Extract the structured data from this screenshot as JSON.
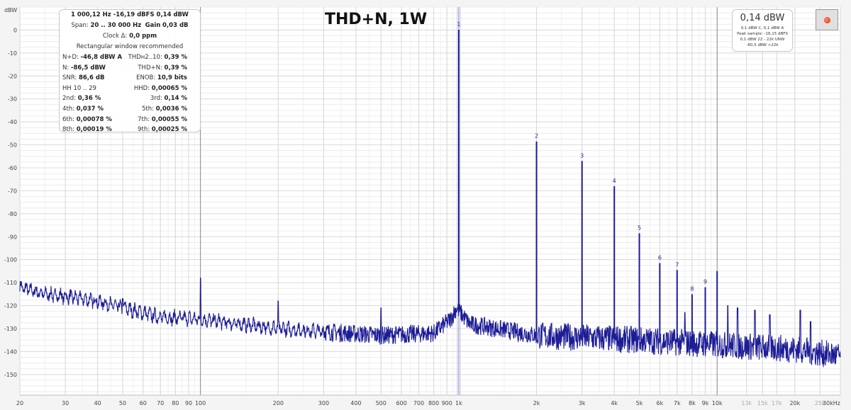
{
  "chart_data": {
    "type": "line",
    "title": "THD+N, 1W",
    "ylabel": "dBW",
    "xunit": "kHz",
    "xscale": "log",
    "xlim": [
      20,
      30000
    ],
    "ylim": [
      -159,
      10
    ],
    "grid": true,
    "yticks": [
      0,
      -10,
      -20,
      -30,
      -40,
      -50,
      -60,
      -70,
      -80,
      -90,
      -100,
      -110,
      -120,
      -130,
      -140,
      -150
    ],
    "xticks": [
      {
        "v": 20,
        "t": "20"
      },
      {
        "v": 30,
        "t": "30"
      },
      {
        "v": 40,
        "t": "40"
      },
      {
        "v": 50,
        "t": "50"
      },
      {
        "v": 60,
        "t": "60"
      },
      {
        "v": 70,
        "t": "70"
      },
      {
        "v": 80,
        "t": "80"
      },
      {
        "v": 90,
        "t": "90"
      },
      {
        "v": 100,
        "t": "100"
      },
      {
        "v": 200,
        "t": "200"
      },
      {
        "v": 300,
        "t": "300"
      },
      {
        "v": 400,
        "t": "400"
      },
      {
        "v": 500,
        "t": "500"
      },
      {
        "v": 600,
        "t": "600"
      },
      {
        "v": 700,
        "t": "700"
      },
      {
        "v": 800,
        "t": "800"
      },
      {
        "v": 900,
        "t": "900"
      },
      {
        "v": 1000,
        "t": "1k"
      },
      {
        "v": 2000,
        "t": "2k"
      },
      {
        "v": 3000,
        "t": "3k"
      },
      {
        "v": 4000,
        "t": "4k"
      },
      {
        "v": 5000,
        "t": "5k"
      },
      {
        "v": 6000,
        "t": "6k"
      },
      {
        "v": 7000,
        "t": "7k"
      },
      {
        "v": 8000,
        "t": "8k"
      },
      {
        "v": 9000,
        "t": "9k"
      },
      {
        "v": 10000,
        "t": "10k"
      },
      {
        "v": 13000,
        "t": "13k",
        "faint": true
      },
      {
        "v": 15000,
        "t": "15k",
        "faint": true
      },
      {
        "v": 17000,
        "t": "17k",
        "faint": true
      },
      {
        "v": 20000,
        "t": "20k"
      },
      {
        "v": 25000,
        "t": "25k",
        "faint": true
      },
      {
        "v": 30000,
        "t": "30kHz"
      }
    ],
    "noise_floor": [
      [
        20,
        -112
      ],
      [
        25,
        -115
      ],
      [
        30,
        -116
      ],
      [
        40,
        -118
      ],
      [
        50,
        -121
      ],
      [
        70,
        -125
      ],
      [
        100,
        -126
      ],
      [
        200,
        -130
      ],
      [
        500,
        -133
      ],
      [
        800,
        -132
      ],
      [
        930,
        -126
      ],
      [
        980,
        -121
      ],
      [
        1030,
        -124
      ],
      [
        1100,
        -128
      ],
      [
        2000,
        -133
      ],
      [
        5000,
        -135
      ],
      [
        10000,
        -137
      ],
      [
        20000,
        -139
      ],
      [
        30000,
        -142
      ]
    ],
    "spurs": [
      [
        100,
        -108
      ],
      [
        200,
        -118
      ],
      [
        500,
        -121
      ],
      [
        25,
        -114
      ],
      [
        50,
        -117
      ],
      [
        7500,
        -123
      ],
      [
        11000,
        -120
      ],
      [
        12000,
        -121
      ],
      [
        14000,
        -122
      ],
      [
        16000,
        -124
      ],
      [
        21000,
        -122
      ],
      [
        23000,
        -127
      ]
    ],
    "harmonics": [
      {
        "label": "1",
        "f": 1000,
        "db": 0.14
      },
      {
        "label": "2",
        "f": 2000,
        "db": -48.5
      },
      {
        "label": "3",
        "f": 3000,
        "db": -57
      },
      {
        "label": "4",
        "f": 4000,
        "db": -68
      },
      {
        "label": "5",
        "f": 5000,
        "db": -88.5
      },
      {
        "label": "6",
        "f": 6000,
        "db": -101.5
      },
      {
        "label": "7",
        "f": 7000,
        "db": -104.5
      },
      {
        "label": "8",
        "f": 8000,
        "db": -115
      },
      {
        "label": "9",
        "f": 9000,
        "db": -112
      },
      {
        "label": "",
        "f": 10000,
        "db": -105
      }
    ],
    "trace_color": "#1c1c96"
  },
  "info": {
    "line1": "1 000,12 Hz  -16,19 dBFS  0,14 dBW",
    "span_label": "Span:",
    "span": "20 .. 30 000 Hz",
    "gain_label": "Gain",
    "gain": "0,03 dB",
    "clock_label": "Clock Δ:",
    "clock": "0,0 ppm",
    "window": "Rectangular window recommended",
    "rows": [
      [
        {
          "k": "N+D:",
          "v": "-46,8 dBW A"
        },
        {
          "k": "THDн2..10:",
          "v": "0,39 %"
        }
      ],
      [
        {
          "k": "N:",
          "v": "-86,5 dBW"
        },
        {
          "k": "THD+N:",
          "v": "0,39 %"
        }
      ],
      [
        {
          "k": "SNR:",
          "v": "86,6 dB"
        },
        {
          "k": "ENOB:",
          "v": "10,9 bits"
        }
      ],
      [
        {
          "k": "HH 10 .. 29",
          "v": ""
        },
        {
          "k": "HHD:",
          "v": "0,00065 %"
        }
      ],
      [
        {
          "k": "2nd:",
          "v": "0,36 %"
        },
        {
          "k": "3rd:",
          "v": "0,14 %"
        }
      ],
      [
        {
          "k": "4th:",
          "v": "0,037 %"
        },
        {
          "k": "5th:",
          "v": "0,0036 %"
        }
      ],
      [
        {
          "k": "6th:",
          "v": "0,00078 %"
        },
        {
          "k": "7th:",
          "v": "0,00055 %"
        }
      ],
      [
        {
          "k": "8th:",
          "v": "0,00019 %"
        },
        {
          "k": "9th:",
          "v": "0,00025 %"
        }
      ]
    ]
  },
  "level": {
    "main": "0,14 dBW",
    "l1": "0,1 dBW C, 0,1 dBW A",
    "l2": "Peak sample: -16,15 dBFS",
    "l3": "0,1 dBW 22 - 22k UNW",
    "l4": "-60,5 dBW >22k"
  }
}
